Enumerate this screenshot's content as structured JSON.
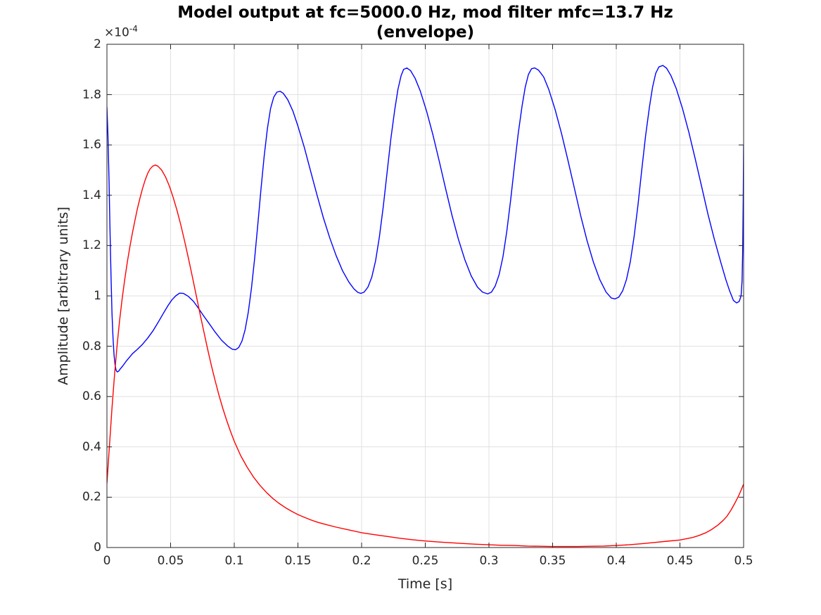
{
  "figure": {
    "title_line1": "Model output at fc=5000.0 Hz, mod filter mfc=13.7 Hz",
    "title_line2": "(envelope)",
    "xlabel": "Time [s]",
    "ylabel": "Amplitude [arbitrary units]",
    "y_offset_base": "×10",
    "y_offset_exponent": "-4"
  },
  "chart_data": {
    "type": "line",
    "title": "Model output at fc=5000.0 Hz, mod filter mfc=13.7 Hz (envelope)",
    "xlabel": "Time [s]",
    "ylabel": "Amplitude [arbitrary units]",
    "y_units_multiplier": 0.0001,
    "y_scale_label": "×10^-4",
    "xlim": [
      0,
      0.5
    ],
    "ylim": [
      0,
      2
    ],
    "grid": true,
    "legend": null,
    "x_ticks": [
      0,
      0.05,
      0.1,
      0.15,
      0.2,
      0.25,
      0.3,
      0.35,
      0.4,
      0.45,
      0.5
    ],
    "x_tick_labels": [
      "0",
      "0.05",
      "0.1",
      "0.15",
      "0.2",
      "0.25",
      "0.3",
      "0.35",
      "0.4",
      "0.45",
      "0.5"
    ],
    "y_ticks": [
      0,
      0.2,
      0.4,
      0.6,
      0.8,
      1,
      1.2,
      1.4,
      1.6,
      1.8,
      2
    ],
    "y_tick_labels": [
      "0",
      "0.2",
      "0.4",
      "0.6",
      "0.8",
      "1",
      "1.2",
      "1.4",
      "1.6",
      "1.8",
      "2"
    ],
    "colors": {
      "axis": "#262626",
      "grid": "#e0e0e0",
      "blue": "#0000ff",
      "red": "#ff0000"
    },
    "series": [
      {
        "name": "blue",
        "color": "#0000ff",
        "points": [
          [
            0.0,
            1.75
          ],
          [
            0.0008,
            1.64
          ],
          [
            0.0016,
            1.47
          ],
          [
            0.0024,
            1.27
          ],
          [
            0.0032,
            1.08
          ],
          [
            0.004,
            0.93
          ],
          [
            0.0048,
            0.83
          ],
          [
            0.0056,
            0.765
          ],
          [
            0.0064,
            0.725
          ],
          [
            0.0072,
            0.705
          ],
          [
            0.008,
            0.698
          ],
          [
            0.009,
            0.7
          ],
          [
            0.0105,
            0.71
          ],
          [
            0.0125,
            0.722
          ],
          [
            0.015,
            0.74
          ],
          [
            0.0175,
            0.755
          ],
          [
            0.02,
            0.77
          ],
          [
            0.024,
            0.788
          ],
          [
            0.028,
            0.808
          ],
          [
            0.032,
            0.832
          ],
          [
            0.036,
            0.86
          ],
          [
            0.04,
            0.893
          ],
          [
            0.044,
            0.928
          ],
          [
            0.048,
            0.962
          ],
          [
            0.051,
            0.984
          ],
          [
            0.054,
            1.0
          ],
          [
            0.057,
            1.011
          ],
          [
            0.06,
            1.01
          ],
          [
            0.064,
            0.998
          ],
          [
            0.068,
            0.978
          ],
          [
            0.072,
            0.95
          ],
          [
            0.076,
            0.92
          ],
          [
            0.08,
            0.892
          ],
          [
            0.085,
            0.856
          ],
          [
            0.09,
            0.824
          ],
          [
            0.095,
            0.8
          ],
          [
            0.0985,
            0.788
          ],
          [
            0.101,
            0.786
          ],
          [
            0.1035,
            0.795
          ],
          [
            0.106,
            0.82
          ],
          [
            0.1085,
            0.865
          ],
          [
            0.111,
            0.935
          ],
          [
            0.1135,
            1.03
          ],
          [
            0.116,
            1.15
          ],
          [
            0.1185,
            1.285
          ],
          [
            0.121,
            1.425
          ],
          [
            0.1235,
            1.555
          ],
          [
            0.126,
            1.665
          ],
          [
            0.1285,
            1.745
          ],
          [
            0.131,
            1.79
          ],
          [
            0.1335,
            1.81
          ],
          [
            0.136,
            1.813
          ],
          [
            0.1385,
            1.805
          ],
          [
            0.142,
            1.78
          ],
          [
            0.146,
            1.735
          ],
          [
            0.15,
            1.675
          ],
          [
            0.155,
            1.59
          ],
          [
            0.16,
            1.495
          ],
          [
            0.165,
            1.4
          ],
          [
            0.17,
            1.31
          ],
          [
            0.175,
            1.23
          ],
          [
            0.18,
            1.16
          ],
          [
            0.185,
            1.1
          ],
          [
            0.19,
            1.055
          ],
          [
            0.194,
            1.028
          ],
          [
            0.197,
            1.014
          ],
          [
            0.1995,
            1.01
          ],
          [
            0.202,
            1.015
          ],
          [
            0.205,
            1.035
          ],
          [
            0.208,
            1.075
          ],
          [
            0.211,
            1.14
          ],
          [
            0.214,
            1.235
          ],
          [
            0.217,
            1.355
          ],
          [
            0.22,
            1.49
          ],
          [
            0.223,
            1.625
          ],
          [
            0.226,
            1.74
          ],
          [
            0.2285,
            1.82
          ],
          [
            0.231,
            1.875
          ],
          [
            0.233,
            1.9
          ],
          [
            0.2355,
            1.906
          ],
          [
            0.2385,
            1.895
          ],
          [
            0.242,
            1.865
          ],
          [
            0.246,
            1.815
          ],
          [
            0.251,
            1.735
          ],
          [
            0.256,
            1.64
          ],
          [
            0.261,
            1.535
          ],
          [
            0.266,
            1.425
          ],
          [
            0.271,
            1.32
          ],
          [
            0.276,
            1.225
          ],
          [
            0.281,
            1.145
          ],
          [
            0.286,
            1.08
          ],
          [
            0.291,
            1.035
          ],
          [
            0.295,
            1.015
          ],
          [
            0.299,
            1.008
          ],
          [
            0.302,
            1.015
          ],
          [
            0.305,
            1.04
          ],
          [
            0.308,
            1.085
          ],
          [
            0.311,
            1.155
          ],
          [
            0.314,
            1.255
          ],
          [
            0.317,
            1.38
          ],
          [
            0.32,
            1.515
          ],
          [
            0.323,
            1.645
          ],
          [
            0.326,
            1.755
          ],
          [
            0.3285,
            1.83
          ],
          [
            0.331,
            1.88
          ],
          [
            0.3335,
            1.903
          ],
          [
            0.336,
            1.906
          ],
          [
            0.339,
            1.897
          ],
          [
            0.343,
            1.87
          ],
          [
            0.347,
            1.82
          ],
          [
            0.352,
            1.74
          ],
          [
            0.357,
            1.645
          ],
          [
            0.362,
            1.54
          ],
          [
            0.367,
            1.43
          ],
          [
            0.372,
            1.32
          ],
          [
            0.377,
            1.22
          ],
          [
            0.382,
            1.135
          ],
          [
            0.387,
            1.065
          ],
          [
            0.392,
            1.015
          ],
          [
            0.396,
            0.992
          ],
          [
            0.399,
            0.988
          ],
          [
            0.402,
            0.995
          ],
          [
            0.405,
            1.02
          ],
          [
            0.408,
            1.065
          ],
          [
            0.411,
            1.135
          ],
          [
            0.414,
            1.235
          ],
          [
            0.417,
            1.36
          ],
          [
            0.42,
            1.5
          ],
          [
            0.423,
            1.635
          ],
          [
            0.426,
            1.75
          ],
          [
            0.4285,
            1.83
          ],
          [
            0.431,
            1.885
          ],
          [
            0.4335,
            1.91
          ],
          [
            0.4365,
            1.916
          ],
          [
            0.4395,
            1.905
          ],
          [
            0.443,
            1.875
          ],
          [
            0.447,
            1.825
          ],
          [
            0.452,
            1.745
          ],
          [
            0.457,
            1.65
          ],
          [
            0.462,
            1.545
          ],
          [
            0.467,
            1.435
          ],
          [
            0.472,
            1.325
          ],
          [
            0.477,
            1.225
          ],
          [
            0.482,
            1.135
          ],
          [
            0.486,
            1.065
          ],
          [
            0.489,
            1.02
          ],
          [
            0.492,
            0.982
          ],
          [
            0.4945,
            0.972
          ],
          [
            0.4965,
            0.978
          ],
          [
            0.498,
            1.0
          ],
          [
            0.4988,
            1.06
          ],
          [
            0.4993,
            1.18
          ],
          [
            0.4997,
            1.4
          ],
          [
            0.5,
            1.6
          ]
        ]
      },
      {
        "name": "red",
        "color": "#ff0000",
        "points": [
          [
            0.0,
            0.255
          ],
          [
            0.002,
            0.405
          ],
          [
            0.004,
            0.555
          ],
          [
            0.006,
            0.69
          ],
          [
            0.008,
            0.805
          ],
          [
            0.01,
            0.905
          ],
          [
            0.012,
            0.99
          ],
          [
            0.014,
            1.065
          ],
          [
            0.016,
            1.135
          ],
          [
            0.018,
            1.195
          ],
          [
            0.02,
            1.25
          ],
          [
            0.022,
            1.3
          ],
          [
            0.024,
            1.348
          ],
          [
            0.026,
            1.39
          ],
          [
            0.028,
            1.428
          ],
          [
            0.03,
            1.46
          ],
          [
            0.032,
            1.487
          ],
          [
            0.034,
            1.505
          ],
          [
            0.036,
            1.516
          ],
          [
            0.038,
            1.52
          ],
          [
            0.04,
            1.516
          ],
          [
            0.043,
            1.5
          ],
          [
            0.046,
            1.473
          ],
          [
            0.049,
            1.437
          ],
          [
            0.052,
            1.392
          ],
          [
            0.055,
            1.34
          ],
          [
            0.058,
            1.282
          ],
          [
            0.061,
            1.218
          ],
          [
            0.064,
            1.15
          ],
          [
            0.067,
            1.078
          ],
          [
            0.07,
            1.005
          ],
          [
            0.073,
            0.932
          ],
          [
            0.076,
            0.86
          ],
          [
            0.079,
            0.79
          ],
          [
            0.082,
            0.724
          ],
          [
            0.085,
            0.662
          ],
          [
            0.088,
            0.605
          ],
          [
            0.091,
            0.553
          ],
          [
            0.094,
            0.506
          ],
          [
            0.097,
            0.462
          ],
          [
            0.1,
            0.422
          ],
          [
            0.105,
            0.366
          ],
          [
            0.11,
            0.32
          ],
          [
            0.115,
            0.281
          ],
          [
            0.12,
            0.248
          ],
          [
            0.125,
            0.22
          ],
          [
            0.13,
            0.196
          ],
          [
            0.135,
            0.176
          ],
          [
            0.14,
            0.159
          ],
          [
            0.145,
            0.144
          ],
          [
            0.15,
            0.131
          ],
          [
            0.155,
            0.12
          ],
          [
            0.16,
            0.11
          ],
          [
            0.165,
            0.101
          ],
          [
            0.17,
            0.094
          ],
          [
            0.18,
            0.081
          ],
          [
            0.19,
            0.07
          ],
          [
            0.2,
            0.059
          ],
          [
            0.21,
            0.051
          ],
          [
            0.22,
            0.044
          ],
          [
            0.23,
            0.037
          ],
          [
            0.24,
            0.031
          ],
          [
            0.25,
            0.026
          ],
          [
            0.26,
            0.022
          ],
          [
            0.27,
            0.019
          ],
          [
            0.28,
            0.016
          ],
          [
            0.29,
            0.013
          ],
          [
            0.3,
            0.011
          ],
          [
            0.31,
            0.009
          ],
          [
            0.32,
            0.008
          ],
          [
            0.33,
            0.006
          ],
          [
            0.34,
            0.005
          ],
          [
            0.35,
            0.004
          ],
          [
            0.36,
            0.004
          ],
          [
            0.37,
            0.004
          ],
          [
            0.38,
            0.005
          ],
          [
            0.39,
            0.006
          ],
          [
            0.4,
            0.008
          ],
          [
            0.41,
            0.011
          ],
          [
            0.42,
            0.015
          ],
          [
            0.43,
            0.02
          ],
          [
            0.44,
            0.025
          ],
          [
            0.45,
            0.03
          ],
          [
            0.46,
            0.04
          ],
          [
            0.465,
            0.048
          ],
          [
            0.47,
            0.058
          ],
          [
            0.475,
            0.072
          ],
          [
            0.48,
            0.09
          ],
          [
            0.484,
            0.108
          ],
          [
            0.487,
            0.125
          ],
          [
            0.49,
            0.148
          ],
          [
            0.493,
            0.175
          ],
          [
            0.496,
            0.205
          ],
          [
            0.498,
            0.228
          ],
          [
            0.5,
            0.252
          ]
        ]
      }
    ]
  }
}
